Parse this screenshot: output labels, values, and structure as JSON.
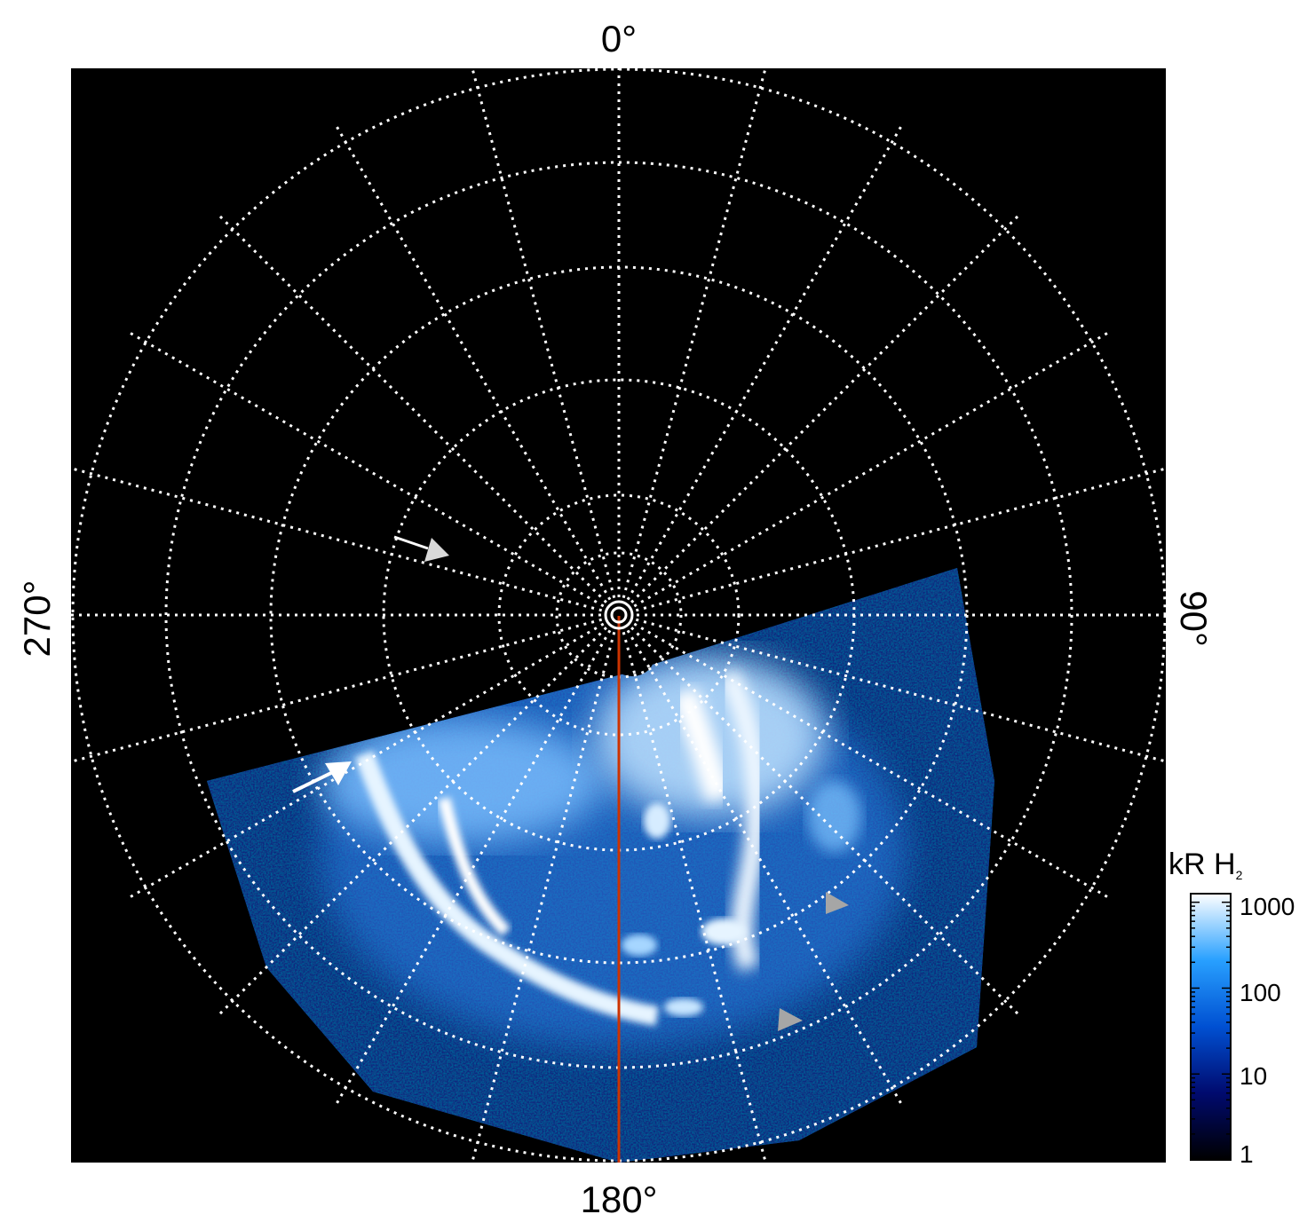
{
  "labels": {
    "top": "0°",
    "bottom": "180°",
    "left": "270°",
    "right": "90°"
  },
  "colorbar": {
    "title_main": "kR H",
    "title_sub": "2",
    "ticks": [
      "1000",
      "100",
      "10",
      "1"
    ],
    "scale": "log",
    "colors": [
      "#000000",
      "#000a6e",
      "#0050d2",
      "#28a0ff",
      "#ffffff"
    ]
  },
  "grid": {
    "style": "dotted",
    "color": "#ffffff"
  },
  "central_meridian_color": "#cc3300",
  "annotation_colors": {
    "white_arrows": "#ffffff",
    "grey_markers": "#a6a6a6"
  }
}
